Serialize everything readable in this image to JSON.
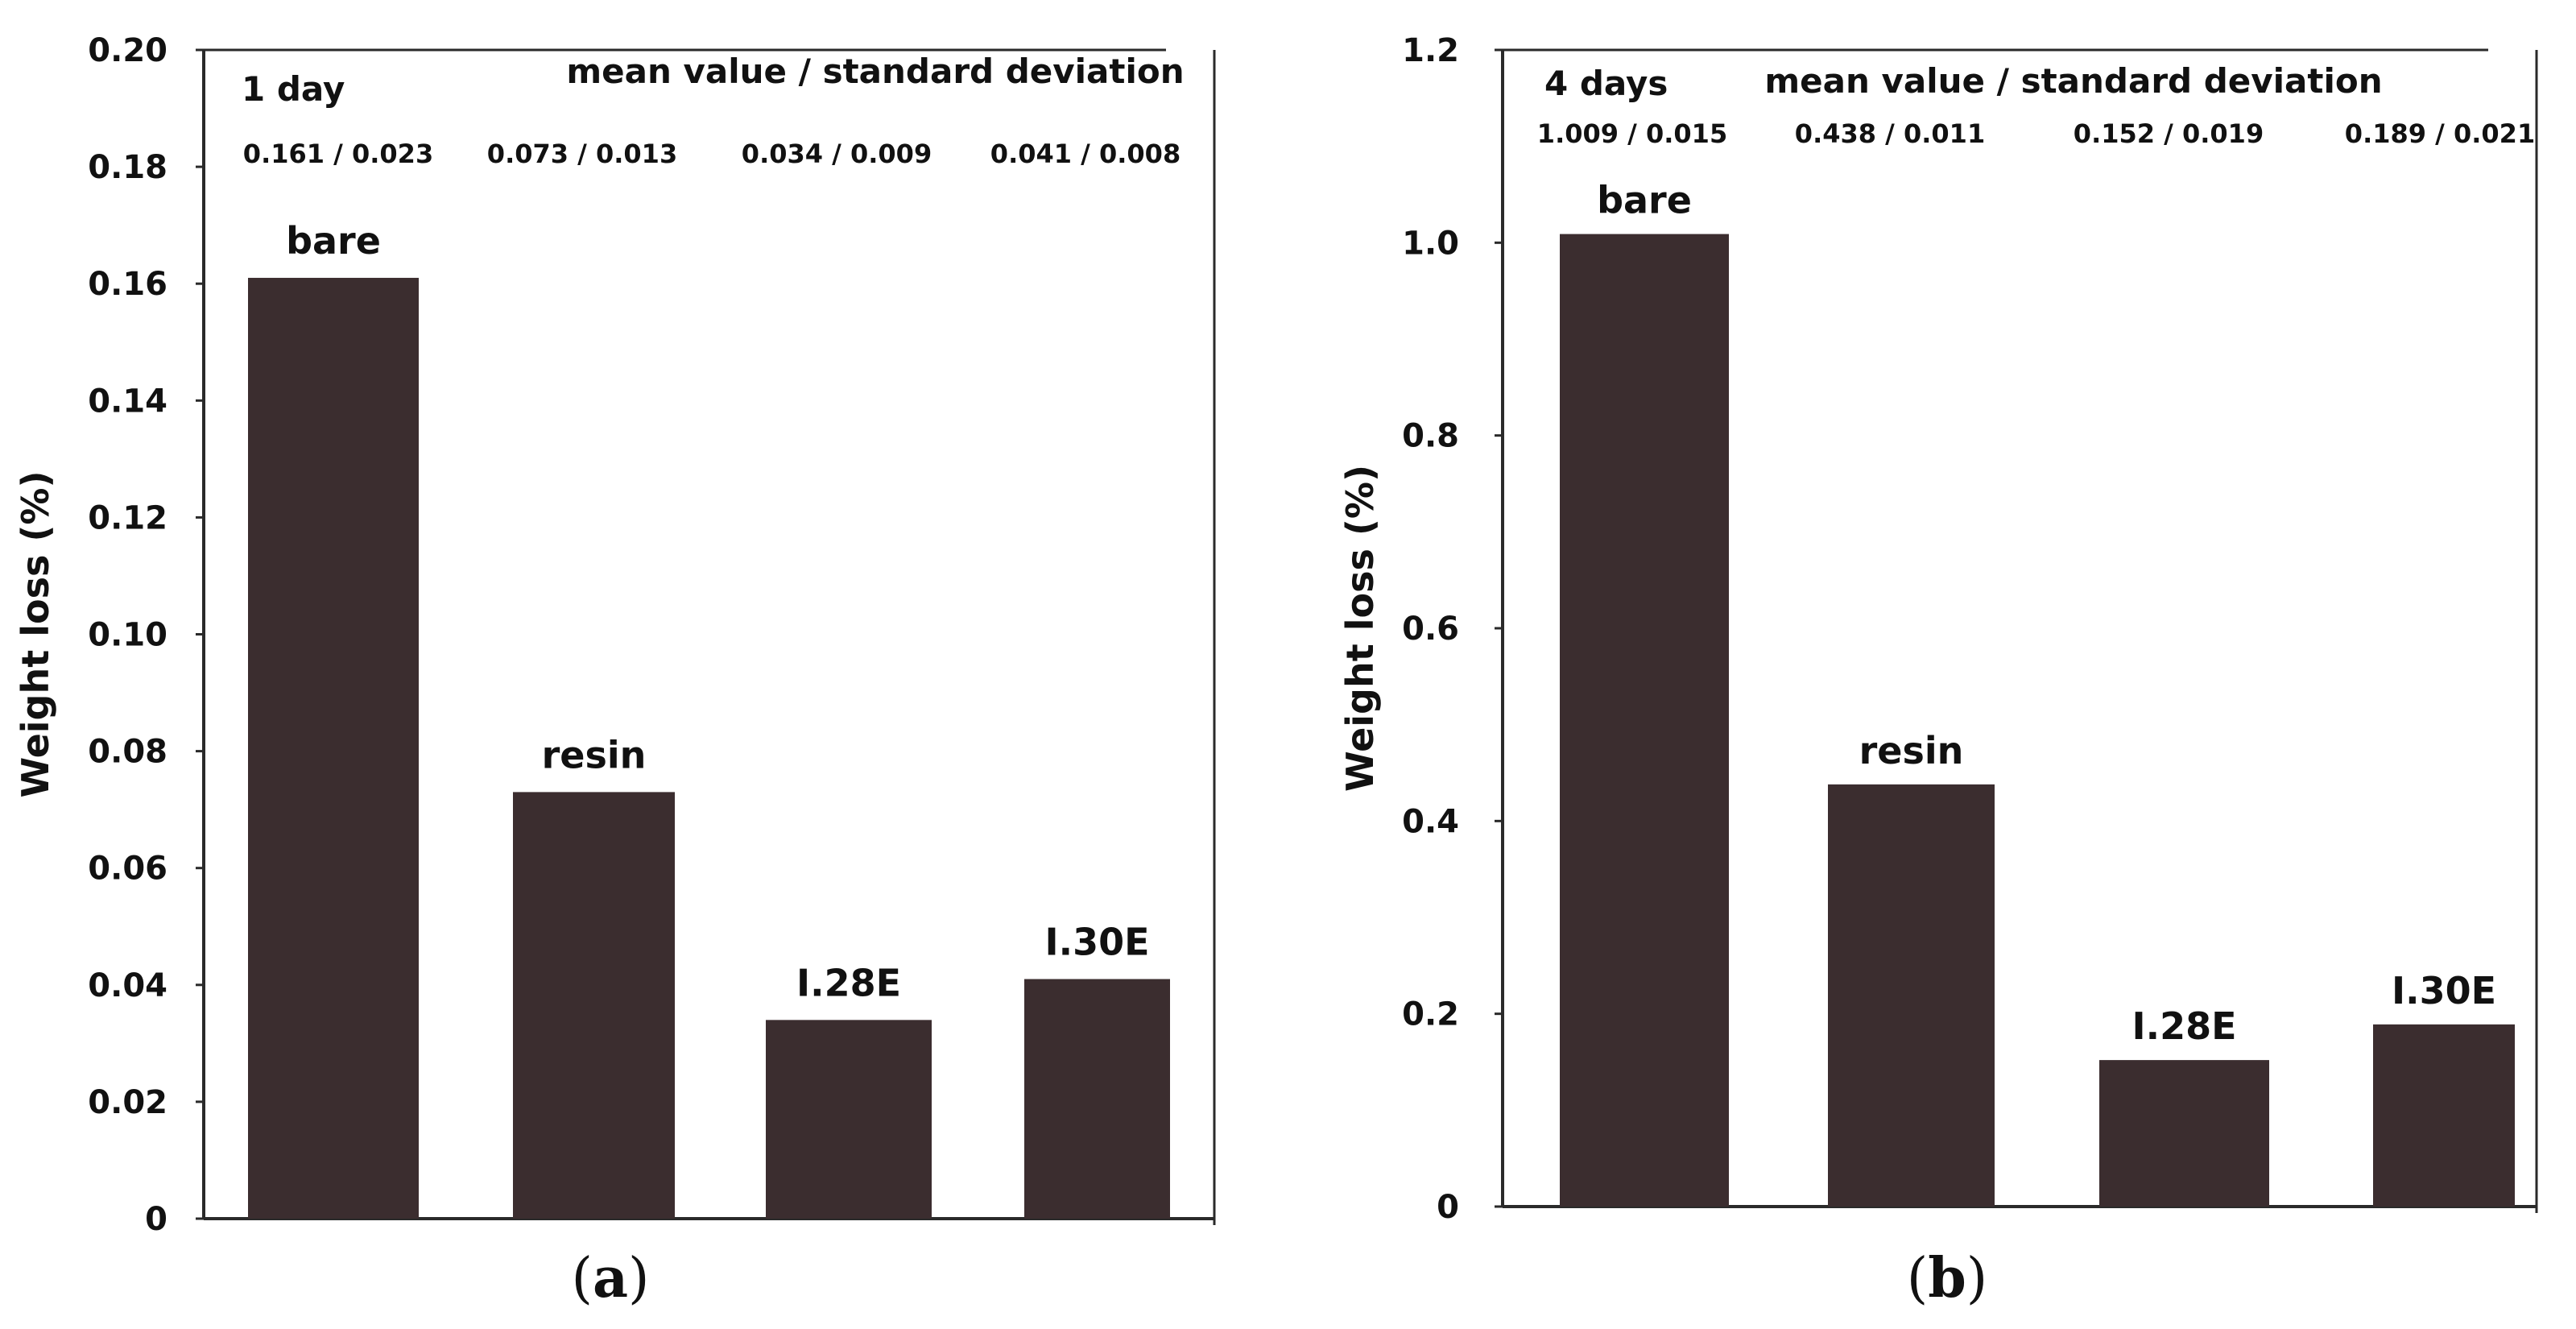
{
  "colors": {
    "bar": "#3b2d2f",
    "axis": "#2a2a2a",
    "background": "#ffffff"
  },
  "chart_data": [
    {
      "type": "bar",
      "panel_label": "a",
      "period": "1 day",
      "header": "mean value  / standard deviation",
      "ylabel": "Weight loss (%)",
      "xlabel": "",
      "ylim": [
        0,
        0.2
      ],
      "yticks": [
        "0",
        "0.02",
        "0.04",
        "0.06",
        "0.08",
        "0.10",
        "0.12",
        "0.14",
        "0.16",
        "0.18",
        "0.20"
      ],
      "grid": false,
      "categories": [
        "bare",
        "resin",
        "I.28E",
        "I.30E"
      ],
      "values": [
        0.161,
        0.073,
        0.034,
        0.041
      ],
      "stats": [
        "0.161 / 0.023",
        "0.073 / 0.013",
        "0.034 / 0.009",
        "0.041 / 0.008"
      ]
    },
    {
      "type": "bar",
      "panel_label": "b",
      "period": "4 days",
      "header": "mean value / standard deviation",
      "ylabel": "Weight loss (%)",
      "xlabel": "",
      "ylim": [
        0,
        1.2
      ],
      "yticks": [
        "0",
        "0.2",
        "0.4",
        "0.6",
        "0.8",
        "1.0",
        "1.2"
      ],
      "grid": false,
      "categories": [
        "bare",
        "resin",
        "I.28E",
        "I.30E"
      ],
      "values": [
        1.009,
        0.438,
        0.152,
        0.189
      ],
      "stats": [
        "1.009 / 0.015",
        "0.438 / 0.011",
        "0.152 / 0.019",
        "0.189 / 0.021"
      ]
    }
  ]
}
